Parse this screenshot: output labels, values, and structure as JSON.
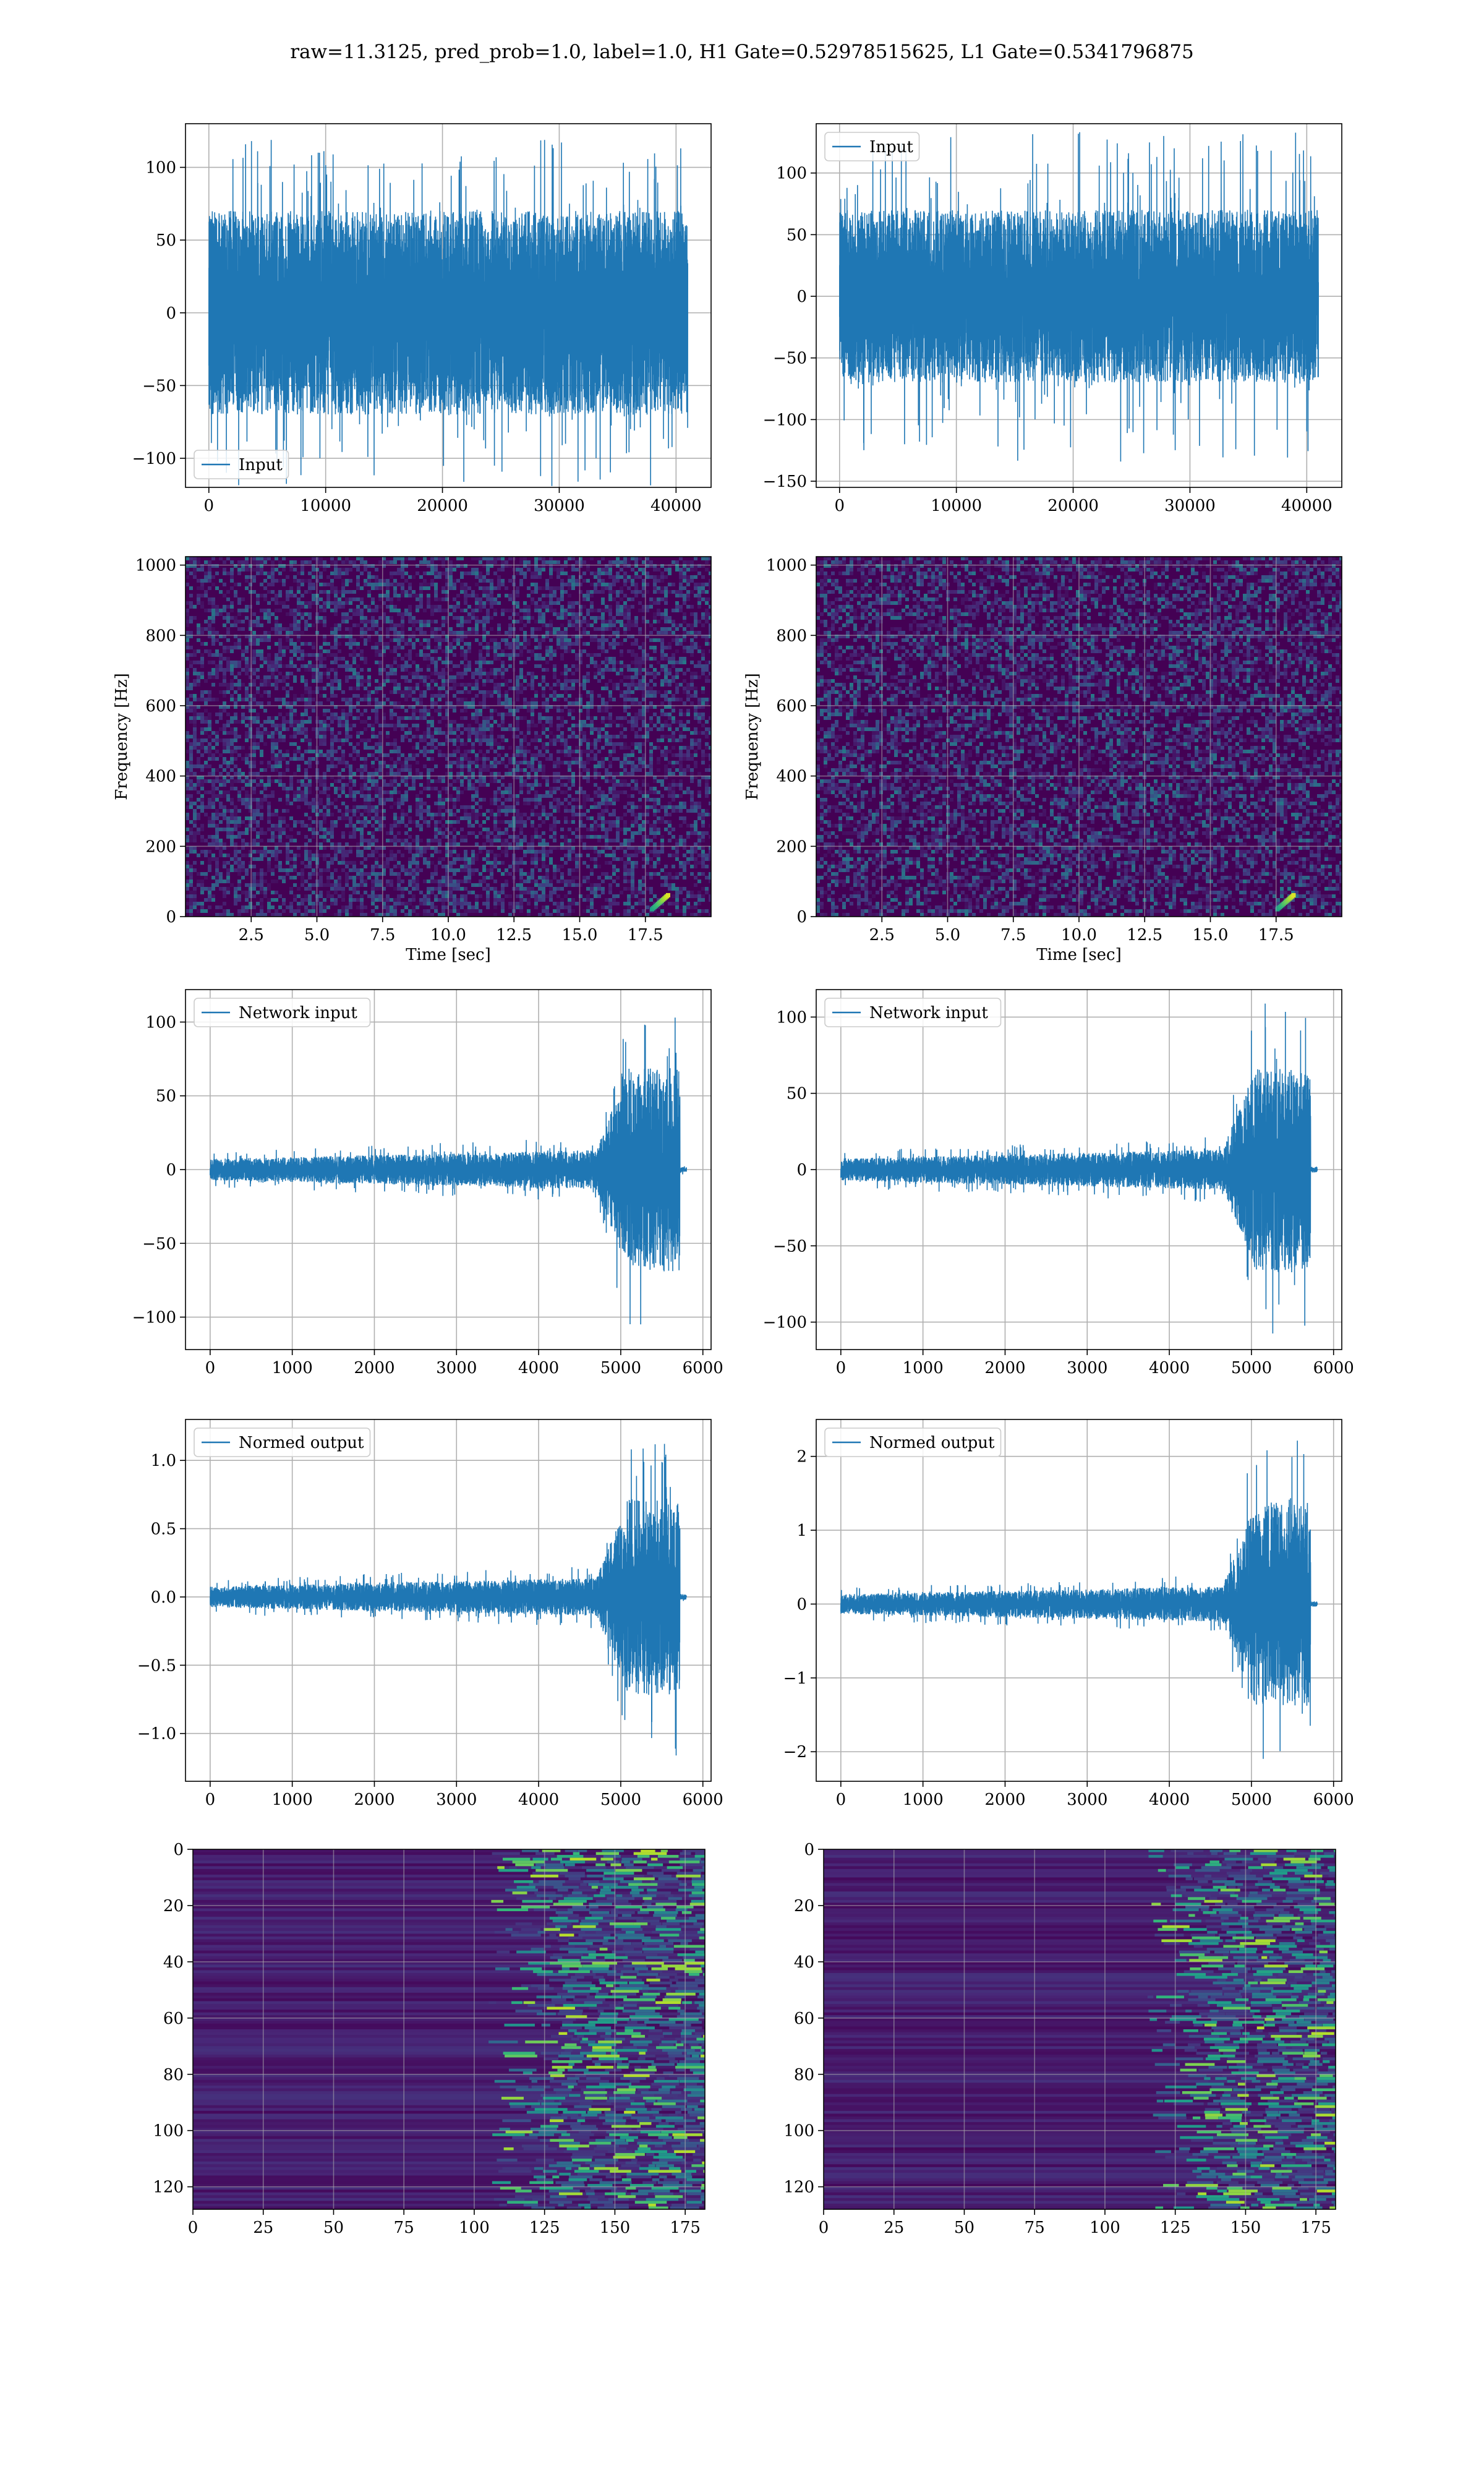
{
  "figure": {
    "suptitle": "raw=11.3125, pred_prob=1.0, label=1.0, H1 Gate=0.52978515625, L1 Gate=0.5341796875",
    "colors": {
      "line": "#1f77b4",
      "grid": "#b0b0b0",
      "axis": "#000000",
      "bg": "#ffffff"
    },
    "colormap": "viridis"
  },
  "chart_data": [
    {
      "id": "input-h1",
      "type": "line",
      "render": "noise",
      "legend": [
        "Input"
      ],
      "legend_loc": "lower left",
      "xlim": [
        -2000,
        43000
      ],
      "ylim": [
        -120,
        130
      ],
      "xticks": [
        0,
        10000,
        20000,
        30000,
        40000
      ],
      "xtick_labels": [
        "0",
        "10000",
        "20000",
        "30000",
        "40000"
      ],
      "yticks": [
        -100,
        -50,
        0,
        50,
        100
      ],
      "ytick_labels": [
        "−100",
        "−50",
        "0",
        "50",
        "100"
      ],
      "series": [
        {
          "name": "Input",
          "x_range": [
            0,
            41000
          ],
          "core_amp": 70,
          "peak_amp": 120
        }
      ]
    },
    {
      "id": "input-l1",
      "type": "line",
      "render": "noise",
      "legend": [
        "Input"
      ],
      "legend_loc": "upper left",
      "xlim": [
        -2000,
        43000
      ],
      "ylim": [
        -155,
        140
      ],
      "xticks": [
        0,
        10000,
        20000,
        30000,
        40000
      ],
      "xtick_labels": [
        "0",
        "10000",
        "20000",
        "30000",
        "40000"
      ],
      "yticks": [
        -150,
        -100,
        -50,
        0,
        50,
        100
      ],
      "ytick_labels": [
        "−150",
        "−100",
        "−50",
        "0",
        "50",
        "100"
      ],
      "series": [
        {
          "name": "Input",
          "x_range": [
            0,
            41000
          ],
          "core_amp": 70,
          "peak_amp": 135
        }
      ]
    },
    {
      "id": "spectrogram-h1",
      "type": "heatmap",
      "render": "spectrogram",
      "xlabel": "Time [sec]",
      "ylabel": "Frequency [Hz]",
      "xlim": [
        0,
        20
      ],
      "ylim": [
        0,
        1024
      ],
      "xticks": [
        2.5,
        5.0,
        7.5,
        10.0,
        12.5,
        15.0,
        17.5
      ],
      "xtick_labels": [
        "2.5",
        "5.0",
        "7.5",
        "10.0",
        "12.5",
        "15.0",
        "17.5"
      ],
      "yticks": [
        0,
        200,
        400,
        600,
        800,
        1000
      ],
      "ytick_labels": [
        "0",
        "200",
        "400",
        "600",
        "800",
        "1000"
      ],
      "chirp": {
        "t": 18.0,
        "f_low": 20,
        "f_high": 60
      }
    },
    {
      "id": "spectrogram-l1",
      "type": "heatmap",
      "render": "spectrogram",
      "xlabel": "Time [sec]",
      "ylabel": "Frequency [Hz]",
      "xlim": [
        0,
        20
      ],
      "ylim": [
        0,
        1024
      ],
      "xticks": [
        2.5,
        5.0,
        7.5,
        10.0,
        12.5,
        15.0,
        17.5
      ],
      "xtick_labels": [
        "2.5",
        "5.0",
        "7.5",
        "10.0",
        "12.5",
        "15.0",
        "17.5"
      ],
      "yticks": [
        0,
        200,
        400,
        600,
        800,
        1000
      ],
      "ytick_labels": [
        "0",
        "200",
        "400",
        "600",
        "800",
        "1000"
      ],
      "chirp": {
        "t": 17.8,
        "f_low": 20,
        "f_high": 60
      }
    },
    {
      "id": "network-input-h1",
      "type": "line",
      "render": "envelope",
      "legend": [
        "Network input"
      ],
      "legend_loc": "upper left",
      "xlim": [
        -300,
        6100
      ],
      "ylim": [
        -122,
        122
      ],
      "xticks": [
        0,
        1000,
        2000,
        3000,
        4000,
        5000,
        6000
      ],
      "xtick_labels": [
        "0",
        "1000",
        "2000",
        "3000",
        "4000",
        "5000",
        "6000"
      ],
      "yticks": [
        -100,
        -50,
        0,
        50,
        100
      ],
      "ytick_labels": [
        "−100",
        "−50",
        "0",
        "50",
        "100"
      ],
      "series": [
        {
          "name": "Network input",
          "x_end": 5800,
          "base_amp": 22,
          "burst_start": 4700,
          "burst_peak": 5100,
          "burst_amp": 115
        }
      ]
    },
    {
      "id": "network-input-l1",
      "type": "line",
      "render": "envelope",
      "legend": [
        "Network input"
      ],
      "legend_loc": "upper left",
      "xlim": [
        -300,
        6100
      ],
      "ylim": [
        -118,
        118
      ],
      "xticks": [
        0,
        1000,
        2000,
        3000,
        4000,
        5000,
        6000
      ],
      "xtick_labels": [
        "0",
        "1000",
        "2000",
        "3000",
        "4000",
        "5000",
        "6000"
      ],
      "yticks": [
        -100,
        -50,
        0,
        50,
        100
      ],
      "ytick_labels": [
        "−100",
        "−50",
        "0",
        "50",
        "100"
      ],
      "series": [
        {
          "name": "Network input",
          "x_end": 5800,
          "base_amp": 22,
          "burst_start": 4650,
          "burst_peak": 5050,
          "burst_amp": 110
        }
      ]
    },
    {
      "id": "normed-output-h1",
      "type": "line",
      "render": "envelope",
      "legend": [
        "Normed output"
      ],
      "legend_loc": "upper left",
      "xlim": [
        -300,
        6100
      ],
      "ylim": [
        -1.35,
        1.3
      ],
      "xticks": [
        0,
        1000,
        2000,
        3000,
        4000,
        5000,
        6000
      ],
      "xtick_labels": [
        "0",
        "1000",
        "2000",
        "3000",
        "4000",
        "5000",
        "6000"
      ],
      "yticks": [
        -1.0,
        -0.5,
        0.0,
        0.5,
        1.0
      ],
      "ytick_labels": [
        "−1.0",
        "−0.5",
        "0.0",
        "0.5",
        "1.0"
      ],
      "series": [
        {
          "name": "Normed output",
          "x_end": 5800,
          "base_amp": 0.23,
          "burst_start": 4700,
          "burst_peak": 5100,
          "burst_amp": 1.2
        }
      ]
    },
    {
      "id": "normed-output-l1",
      "type": "line",
      "render": "envelope",
      "legend": [
        "Normed output"
      ],
      "legend_loc": "upper left",
      "xlim": [
        -300,
        6100
      ],
      "ylim": [
        -2.4,
        2.5
      ],
      "xticks": [
        0,
        1000,
        2000,
        3000,
        4000,
        5000,
        6000
      ],
      "xtick_labels": [
        "0",
        "1000",
        "2000",
        "3000",
        "4000",
        "5000",
        "6000"
      ],
      "yticks": [
        -2,
        -1,
        0,
        1,
        2
      ],
      "ytick_labels": [
        "−2",
        "−1",
        "0",
        "1",
        "2"
      ],
      "series": [
        {
          "name": "Normed output",
          "x_end": 5800,
          "base_amp": 0.4,
          "burst_start": 4650,
          "burst_peak": 5050,
          "burst_amp": 2.3
        }
      ]
    },
    {
      "id": "feature-map-h1",
      "type": "heatmap",
      "render": "featuremap",
      "xlim": [
        0,
        182
      ],
      "ylim": [
        128,
        0
      ],
      "xticks": [
        0,
        25,
        50,
        75,
        100,
        125,
        150,
        175
      ],
      "xtick_labels": [
        "0",
        "25",
        "50",
        "75",
        "100",
        "125",
        "150",
        "175"
      ],
      "yticks": [
        0,
        20,
        40,
        60,
        80,
        100,
        120
      ],
      "ytick_labels": [
        "0",
        "20",
        "40",
        "60",
        "80",
        "100",
        "120"
      ],
      "activity_onset": 105
    },
    {
      "id": "feature-map-l1",
      "type": "heatmap",
      "render": "featuremap",
      "xlim": [
        0,
        182
      ],
      "ylim": [
        128,
        0
      ],
      "xticks": [
        0,
        25,
        50,
        75,
        100,
        125,
        150,
        175
      ],
      "xtick_labels": [
        "0",
        "25",
        "50",
        "75",
        "100",
        "125",
        "150",
        "175"
      ],
      "yticks": [
        0,
        20,
        40,
        60,
        80,
        100,
        120
      ],
      "ytick_labels": [
        "0",
        "20",
        "40",
        "60",
        "80",
        "100",
        "120"
      ],
      "activity_onset": 115
    }
  ]
}
